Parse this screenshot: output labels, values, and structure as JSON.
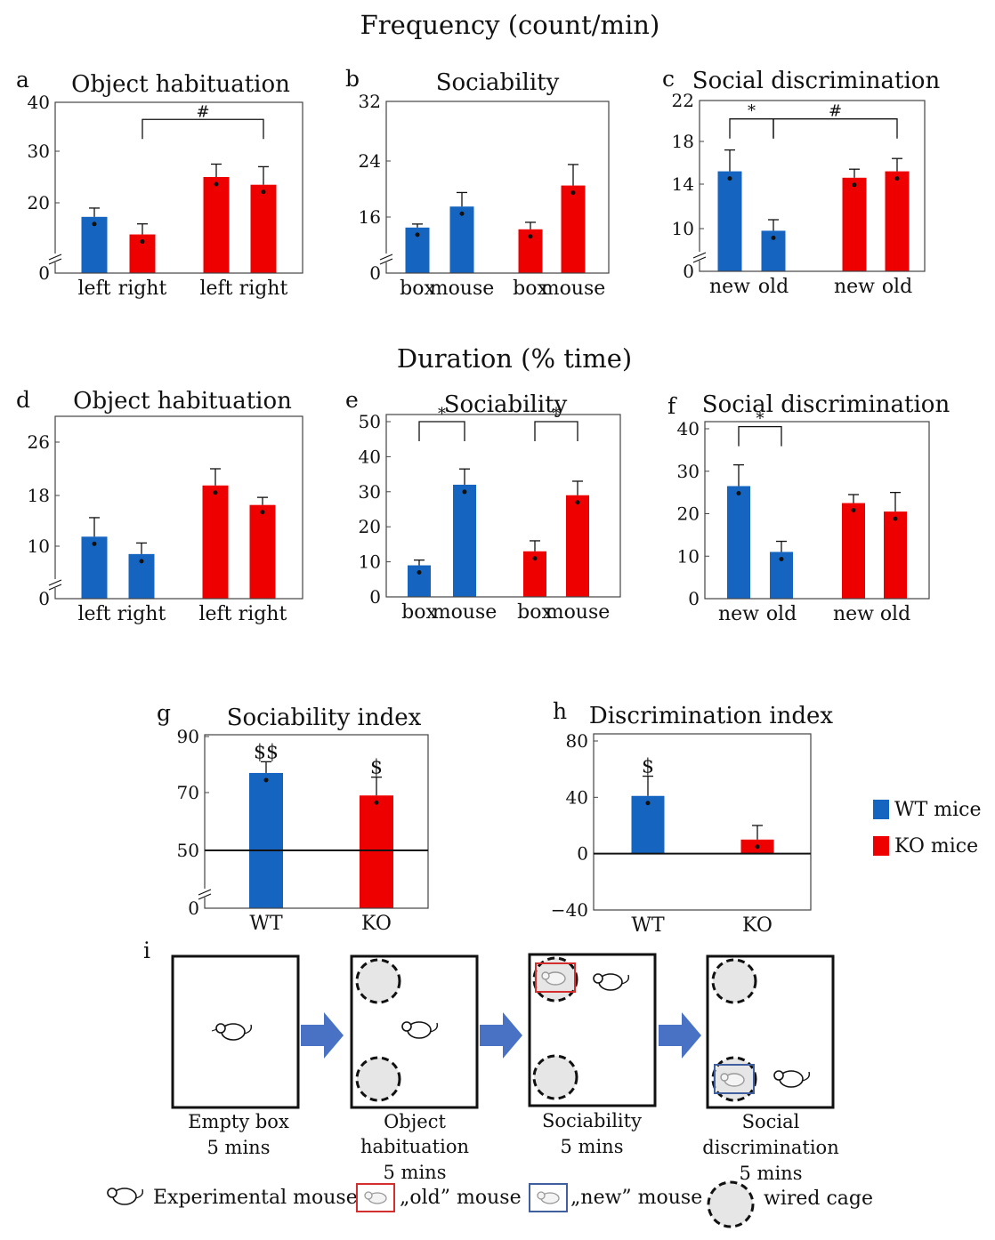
{
  "section_titles": {
    "frequency": "Frequency (count/min)",
    "duration": "Duration (% time)"
  },
  "colors": {
    "wt": "#1565c0",
    "ko": "#ef0000",
    "axis": "#444444",
    "cage_fill": "#e6e6e6",
    "old_box": "#d32f2f",
    "new_box": "#3f5f9f",
    "arrow": "#4a72c4"
  },
  "chart_data": [
    {
      "id": "a",
      "letter": "a",
      "type": "bar",
      "title": "Object habituation",
      "categories": [
        "left",
        "right",
        "left",
        "right"
      ],
      "groups": [
        "WT",
        "KO",
        "KO",
        "KO"
      ],
      "values": [
        16,
        11,
        25,
        23.5
      ],
      "errors": [
        2.5,
        3,
        2.5,
        3.5
      ],
      "yticks": [
        {
          "v": 0,
          "label": "0"
        },
        {
          "v": 20,
          "label": "20"
        },
        {
          "v": 30,
          "label": "30"
        },
        {
          "v": 40,
          "label": "40"
        }
      ],
      "ylim": [
        0,
        40
      ],
      "axis_break": true,
      "brackets": [
        {
          "from": 1,
          "to": 3,
          "y": 36.5,
          "label": "#"
        }
      ]
    },
    {
      "id": "b",
      "letter": "b",
      "type": "bar",
      "title": "Sociability",
      "categories": [
        "box",
        "mouse",
        "box",
        "mouse"
      ],
      "groups": [
        "WT",
        "WT",
        "KO",
        "KO"
      ],
      "values": [
        13,
        17.5,
        12.5,
        20.5
      ],
      "errors": [
        1,
        2,
        2,
        3
      ],
      "yticks": [
        {
          "v": 0,
          "label": "0"
        },
        {
          "v": 16,
          "label": "16"
        },
        {
          "v": 24,
          "label": "24"
        },
        {
          "v": 32,
          "label": "32"
        }
      ],
      "ylim": [
        0,
        32
      ],
      "axis_break": true,
      "brackets": []
    },
    {
      "id": "c",
      "letter": "c",
      "type": "bar",
      "title": "Social discrimination",
      "categories": [
        "new",
        "old",
        "new",
        "old"
      ],
      "groups": [
        "WT",
        "WT",
        "KO",
        "KO"
      ],
      "values": [
        15.2,
        9.5,
        14.6,
        15.2
      ],
      "errors": [
        2,
        1.3,
        0.8,
        1.2
      ],
      "yticks": [
        {
          "v": 0,
          "label": "0"
        },
        {
          "v": 10,
          "label": "10"
        },
        {
          "v": 14,
          "label": "14"
        },
        {
          "v": 18,
          "label": "18"
        },
        {
          "v": 22,
          "label": "22"
        }
      ],
      "ylim": [
        0,
        22
      ],
      "axis_break": true,
      "brackets": [
        {
          "from": 0,
          "to": 1,
          "y": 20.2,
          "label": "*"
        },
        {
          "from": 1,
          "to": 3,
          "y": 20.2,
          "label": "#"
        }
      ]
    },
    {
      "id": "d",
      "letter": "d",
      "type": "bar",
      "title": "Object habituation",
      "categories": [
        "left",
        "right",
        "left",
        "right"
      ],
      "groups": [
        "WT",
        "WT",
        "KO",
        "KO"
      ],
      "values": [
        11.5,
        8.5,
        19.5,
        16.5
      ],
      "errors": [
        3,
        2,
        2.5,
        1.2
      ],
      "yticks": [
        {
          "v": 0,
          "label": "0"
        },
        {
          "v": 10,
          "label": "10"
        },
        {
          "v": 18,
          "label": "18"
        },
        {
          "v": 26,
          "label": "26"
        }
      ],
      "ylim": [
        0,
        30
      ],
      "axis_break": true,
      "brackets": []
    },
    {
      "id": "e",
      "letter": "e",
      "type": "bar",
      "title": "Sociability",
      "categories": [
        "box",
        "mouse",
        "box",
        "mouse"
      ],
      "groups": [
        "WT",
        "WT",
        "KO",
        "KO"
      ],
      "values": [
        9,
        32,
        13,
        29
      ],
      "errors": [
        1.5,
        4.5,
        3,
        4
      ],
      "yticks": [
        {
          "v": 0,
          "label": "0"
        },
        {
          "v": 10,
          "label": "10"
        },
        {
          "v": 20,
          "label": "20"
        },
        {
          "v": 30,
          "label": "30"
        },
        {
          "v": 40,
          "label": "40"
        },
        {
          "v": 50,
          "label": "50"
        }
      ],
      "ylim": [
        0,
        50
      ],
      "axis_break": false,
      "brackets": [
        {
          "from": 0,
          "to": 1,
          "y": 50,
          "label": "*"
        },
        {
          "from": 2,
          "to": 3,
          "y": 50,
          "label": "*"
        }
      ]
    },
    {
      "id": "f",
      "letter": "f",
      "type": "bar",
      "title": "Social discrimination",
      "categories": [
        "new",
        "old",
        "new",
        "old"
      ],
      "groups": [
        "WT",
        "WT",
        "KO",
        "KO"
      ],
      "values": [
        26.5,
        11,
        22.5,
        20.5
      ],
      "errors": [
        5,
        2.5,
        2,
        4.5
      ],
      "yticks": [
        {
          "v": 0,
          "label": "0"
        },
        {
          "v": 10,
          "label": "10"
        },
        {
          "v": 20,
          "label": "20"
        },
        {
          "v": 30,
          "label": "30"
        },
        {
          "v": 40,
          "label": "40"
        }
      ],
      "ylim": [
        0,
        40
      ],
      "axis_break": false,
      "brackets": [
        {
          "from": 0,
          "to": 1,
          "y": 40.5,
          "label": "*"
        }
      ]
    },
    {
      "id": "g",
      "letter": "g",
      "type": "bar",
      "title": "Sociability index",
      "categories": [
        "WT",
        "KO"
      ],
      "groups": [
        "WT",
        "KO"
      ],
      "values": [
        77,
        69
      ],
      "errors": [
        4,
        6.5
      ],
      "yticks": [
        {
          "v": 0,
          "label": "0"
        },
        {
          "v": 50,
          "label": "50"
        },
        {
          "v": 70,
          "label": "70"
        },
        {
          "v": 90,
          "label": "90"
        }
      ],
      "ylim": [
        0,
        90
      ],
      "axis_break": true,
      "reference_line": 50,
      "above_labels": [
        "$$",
        "$"
      ]
    },
    {
      "id": "h",
      "letter": "h",
      "type": "bar",
      "title": "Discrimination index",
      "categories": [
        "WT",
        "KO"
      ],
      "groups": [
        "WT",
        "KO"
      ],
      "values": [
        41,
        10
      ],
      "errors": [
        14,
        10
      ],
      "yticks": [
        {
          "v": -40,
          "label": "−40"
        },
        {
          "v": 0,
          "label": "0"
        },
        {
          "v": 40,
          "label": "40"
        },
        {
          "v": 80,
          "label": "80"
        }
      ],
      "ylim": [
        -40,
        80
      ],
      "axis_break": false,
      "reference_line": 0,
      "above_labels": [
        "$",
        ""
      ]
    }
  ],
  "legend": [
    {
      "label": "WT mice",
      "group": "WT"
    },
    {
      "label": "KO mice",
      "group": "KO"
    }
  ],
  "panel_i": {
    "letter": "i",
    "steps": [
      {
        "label_lines": [
          "Empty box",
          "5 mins"
        ]
      },
      {
        "label_lines": [
          "Object",
          "habituation",
          "5 mins"
        ]
      },
      {
        "label_lines": [
          "Sociability",
          "5 mins"
        ]
      },
      {
        "label_lines": [
          "Social",
          "discrimination",
          "5 mins"
        ]
      }
    ],
    "legend": {
      "experimental": "Experimental mouse",
      "old": "„old” mouse",
      "new": "„new” mouse",
      "cage": "wired cage"
    }
  }
}
